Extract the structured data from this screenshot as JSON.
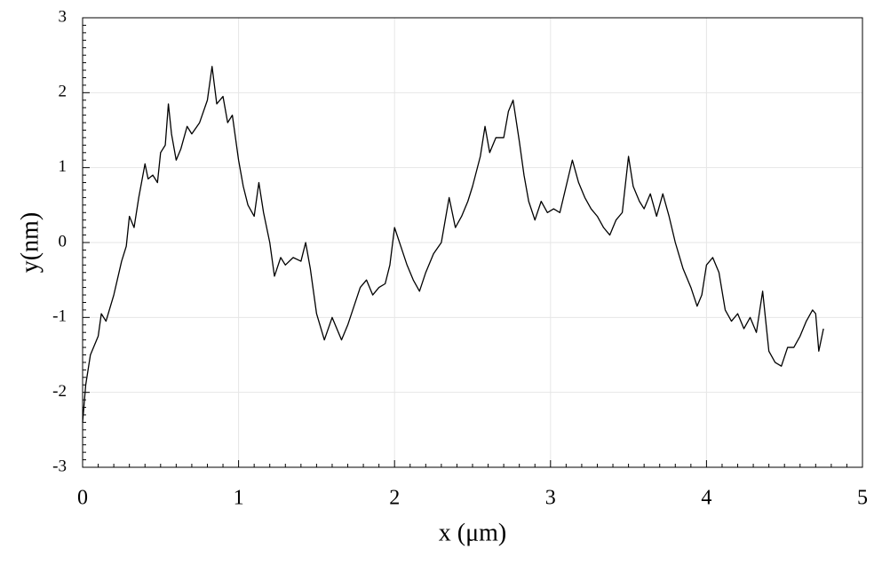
{
  "chart_data": {
    "type": "line",
    "xlabel": "x (μm)",
    "ylabel": "y(nm)",
    "xlim": [
      0,
      5
    ],
    "xticks": [
      0,
      1,
      2,
      3,
      4,
      5
    ],
    "ylim": [
      -3,
      3
    ],
    "yticks": [
      -3,
      -2,
      -1,
      0,
      1,
      2,
      3
    ],
    "grid": true,
    "series": [
      {
        "color": "#000000",
        "x": [
          0,
          0.02,
          0.05,
          0.1,
          0.12,
          0.15,
          0.2,
          0.25,
          0.28,
          0.3,
          0.33,
          0.36,
          0.4,
          0.42,
          0.45,
          0.48,
          0.5,
          0.53,
          0.55,
          0.57,
          0.6,
          0.63,
          0.67,
          0.7,
          0.75,
          0.8,
          0.83,
          0.86,
          0.9,
          0.93,
          0.96,
          1.0,
          1.03,
          1.06,
          1.1,
          1.13,
          1.16,
          1.2,
          1.23,
          1.27,
          1.3,
          1.35,
          1.4,
          1.43,
          1.46,
          1.5,
          1.55,
          1.6,
          1.63,
          1.66,
          1.7,
          1.74,
          1.78,
          1.82,
          1.86,
          1.9,
          1.94,
          1.97,
          2.0,
          2.04,
          2.08,
          2.12,
          2.16,
          2.2,
          2.25,
          2.3,
          2.35,
          2.39,
          2.43,
          2.47,
          2.5,
          2.55,
          2.58,
          2.61,
          2.65,
          2.7,
          2.73,
          2.76,
          2.8,
          2.83,
          2.86,
          2.9,
          2.94,
          2.98,
          3.02,
          3.06,
          3.1,
          3.14,
          3.18,
          3.22,
          3.26,
          3.3,
          3.34,
          3.38,
          3.42,
          3.46,
          3.5,
          3.53,
          3.57,
          3.6,
          3.64,
          3.68,
          3.72,
          3.76,
          3.8,
          3.85,
          3.9,
          3.94,
          3.97,
          4.0,
          4.04,
          4.08,
          4.12,
          4.16,
          4.2,
          4.24,
          4.28,
          4.32,
          4.36,
          4.4,
          4.44,
          4.48,
          4.52,
          4.56,
          4.6,
          4.64,
          4.68,
          4.7,
          4.72,
          4.75
        ],
        "values": [
          -2.4,
          -1.9,
          -1.5,
          -1.25,
          -0.95,
          -1.05,
          -0.7,
          -0.25,
          -0.05,
          0.35,
          0.2,
          0.6,
          1.05,
          0.85,
          0.9,
          0.8,
          1.2,
          1.3,
          1.85,
          1.45,
          1.1,
          1.25,
          1.55,
          1.45,
          1.6,
          1.9,
          2.35,
          1.85,
          1.95,
          1.6,
          1.7,
          1.1,
          0.75,
          0.5,
          0.35,
          0.8,
          0.4,
          0.0,
          -0.45,
          -0.2,
          -0.3,
          -0.2,
          -0.25,
          0.0,
          -0.35,
          -0.95,
          -1.3,
          -1.0,
          -1.15,
          -1.3,
          -1.1,
          -0.85,
          -0.6,
          -0.5,
          -0.7,
          -0.6,
          -0.55,
          -0.3,
          0.2,
          -0.05,
          -0.3,
          -0.5,
          -0.65,
          -0.4,
          -0.15,
          0.0,
          0.6,
          0.2,
          0.35,
          0.55,
          0.75,
          1.15,
          1.55,
          1.2,
          1.4,
          1.4,
          1.75,
          1.9,
          1.35,
          0.9,
          0.55,
          0.3,
          0.55,
          0.4,
          0.45,
          0.4,
          0.75,
          1.1,
          0.8,
          0.6,
          0.45,
          0.35,
          0.2,
          0.1,
          0.3,
          0.4,
          1.15,
          0.75,
          0.55,
          0.45,
          0.65,
          0.35,
          0.65,
          0.35,
          0.0,
          -0.35,
          -0.6,
          -0.85,
          -0.7,
          -0.3,
          -0.2,
          -0.4,
          -0.9,
          -1.05,
          -0.95,
          -1.15,
          -1.0,
          -1.2,
          -0.65,
          -1.45,
          -1.6,
          -1.65,
          -1.4,
          -1.4,
          -1.25,
          -1.05,
          -0.9,
          -0.95,
          -1.45,
          -1.15
        ]
      }
    ]
  }
}
